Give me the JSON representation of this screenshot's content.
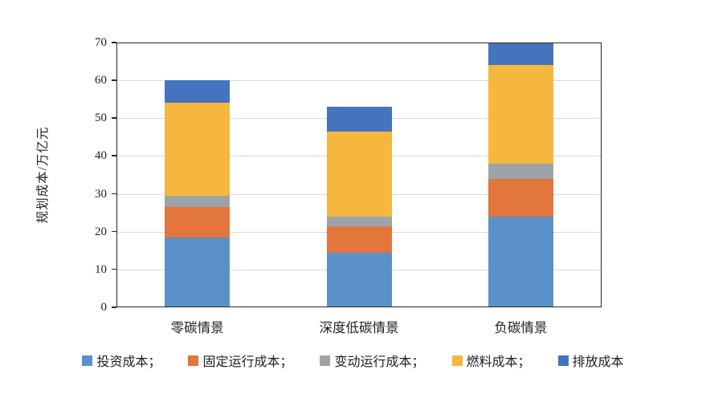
{
  "chart_data": {
    "type": "bar",
    "stacked": true,
    "title": "",
    "xlabel": "",
    "ylabel": "规划成本/万亿元",
    "ylim": [
      0,
      70
    ],
    "ytick_step": 10,
    "ytick_labels": [
      "0",
      "10",
      "20",
      "30",
      "40",
      "50",
      "60",
      "70"
    ],
    "grid": true,
    "legend_position": "bottom",
    "categories": [
      "零碳情景",
      "深度低碳情景",
      "负碳情景"
    ],
    "series": [
      {
        "name": "投资成本",
        "legend_label": "投资成本；",
        "color": "#5B91C9",
        "values": [
          18.5,
          14.5,
          24
        ]
      },
      {
        "name": "固定运行成本",
        "legend_label": "固定运行成本；",
        "color": "#E2763C",
        "values": [
          8,
          7,
          10
        ]
      },
      {
        "name": "变动运行成本",
        "legend_label": "变动运行成本；",
        "color": "#9EA3A8",
        "values": [
          3,
          2.5,
          4
        ]
      },
      {
        "name": "燃料成本",
        "legend_label": "燃料成本；",
        "color": "#F6B73F",
        "values": [
          24.5,
          22.5,
          26
        ]
      },
      {
        "name": "排放成本",
        "legend_label": "排放成本",
        "color": "#4374BD",
        "values": [
          6,
          6.5,
          6
        ]
      }
    ],
    "totals": [
      60,
      53,
      70
    ],
    "colors": {
      "axis_border": "#262626",
      "gridline": "#d9d9d9",
      "background": "#ffffff"
    }
  }
}
